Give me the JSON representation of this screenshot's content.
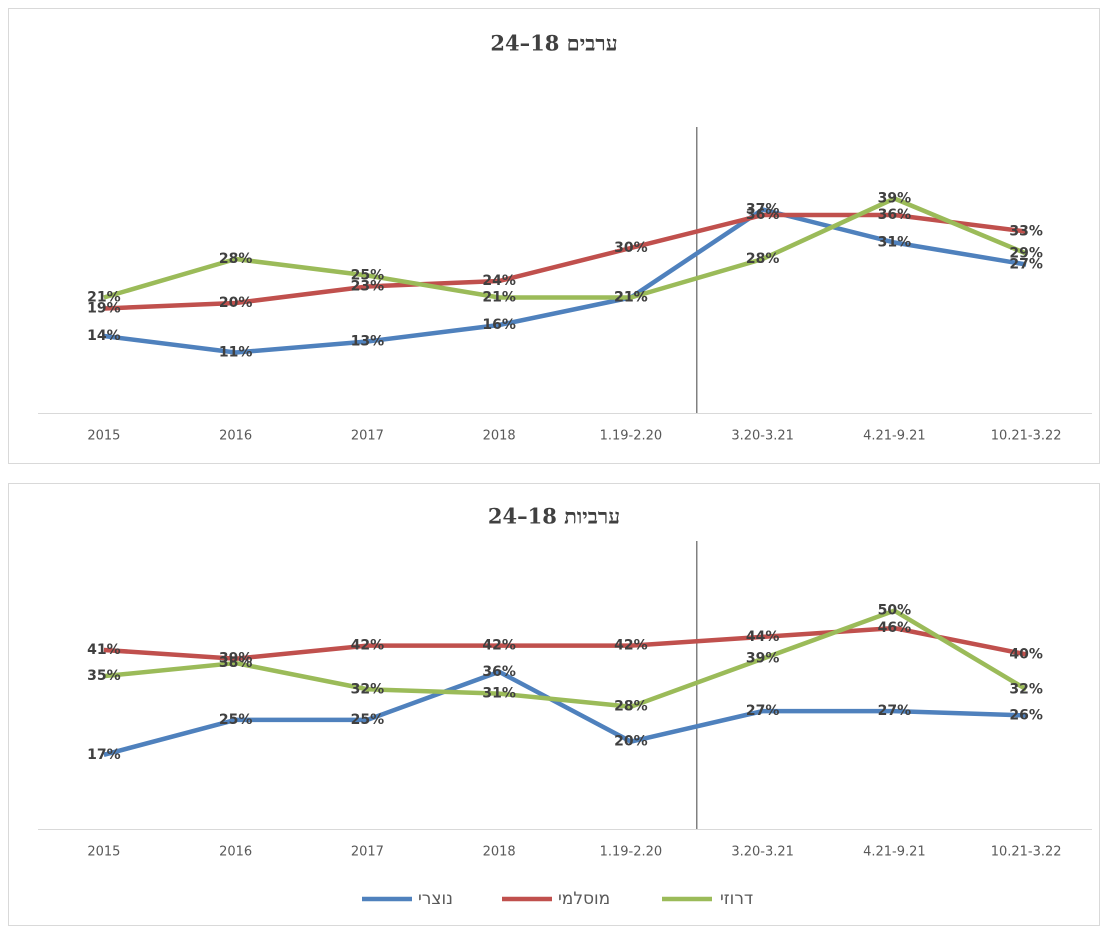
{
  "chart_data": [
    {
      "type": "line",
      "title": "ערבים 18–24",
      "categories": [
        "2015",
        "2016",
        "2017",
        "2018",
        "1.19-2.20",
        "3.20-3.21",
        "4.21-9.21",
        "10.21-3.22"
      ],
      "ylim": [
        0,
        50
      ],
      "series": [
        {
          "name": "נוצרי",
          "color": "#4f81bd",
          "values": [
            14,
            11,
            13,
            16,
            21,
            37,
            31,
            27
          ],
          "value_labels": [
            "14%",
            "11%",
            "13%",
            "16%",
            "21%",
            "37%",
            "31%",
            "27%"
          ]
        },
        {
          "name": "מוסלמי",
          "color": "#c0504d",
          "values": [
            19,
            20,
            23,
            24,
            30,
            36,
            36,
            33
          ],
          "value_labels": [
            "19%",
            "20%",
            "23%",
            "24%",
            "30%",
            "36%",
            "36%",
            "33%"
          ]
        },
        {
          "name": "דרוזי",
          "color": "#9bbb59",
          "values": [
            21,
            28,
            25,
            21,
            21,
            28,
            39,
            29
          ],
          "value_labels": [
            "21%",
            "28%",
            "25%",
            "21%",
            "21%",
            "28%",
            "39%",
            "29%"
          ]
        }
      ]
    },
    {
      "type": "line",
      "title": "ערביות 18–24",
      "categories": [
        "2015",
        "2016",
        "2017",
        "2018",
        "1.19-2.20",
        "3.20-3.21",
        "4.21-9.21",
        "10.21-3.22"
      ],
      "ylim": [
        0,
        60
      ],
      "series": [
        {
          "name": "נוצרי",
          "color": "#4f81bd",
          "values": [
            17,
            25,
            25,
            36,
            20,
            27,
            27,
            26
          ],
          "value_labels": [
            "17%",
            "25%",
            "25%",
            "36%",
            "20%",
            "27%",
            "27%",
            "26%"
          ]
        },
        {
          "name": "מוסלמי",
          "color": "#c0504d",
          "values": [
            41,
            39,
            42,
            42,
            42,
            44,
            46,
            40
          ],
          "value_labels": [
            "41%",
            "39%",
            "42%",
            "42%",
            "42%",
            "44%",
            "46%",
            "40%"
          ]
        },
        {
          "name": "דרוזי",
          "color": "#9bbb59",
          "values": [
            35,
            38,
            32,
            31,
            28,
            39,
            50,
            32
          ],
          "value_labels": [
            "35%",
            "38%",
            "32%",
            "31%",
            "28%",
            "39%",
            "50%",
            "32%"
          ]
        }
      ]
    }
  ]
}
